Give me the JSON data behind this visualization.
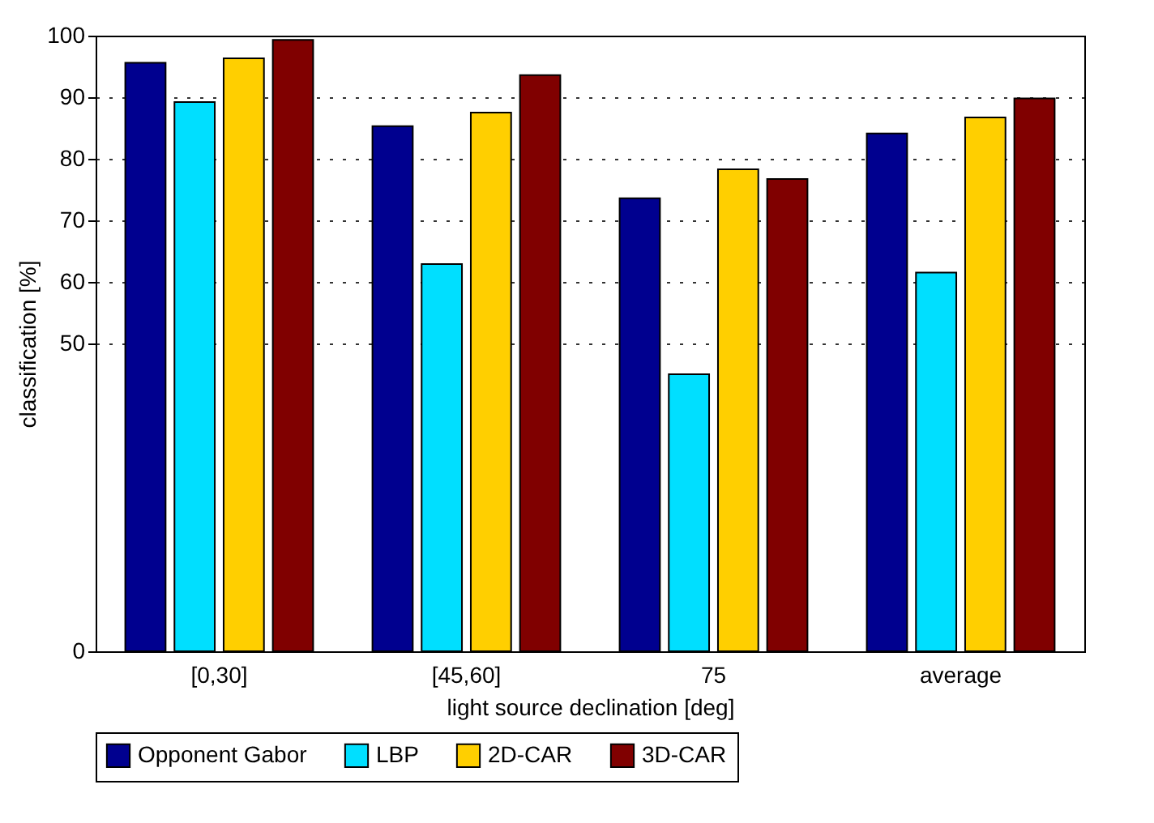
{
  "chart_data": {
    "type": "bar",
    "xlabel": "light source declination [deg]",
    "ylabel": "classification [%]",
    "categories": [
      "[0,30]",
      "[45,60]",
      "75",
      "average"
    ],
    "series": [
      {
        "name": "Opponent Gabor",
        "color": "#00008f",
        "values": [
          95.6,
          85.3,
          73.6,
          84.1
        ]
      },
      {
        "name": "LBP",
        "color": "#00dfff",
        "values": [
          89.2,
          62.9,
          45,
          61.5
        ]
      },
      {
        "name": "2D-CAR",
        "color": "#ffcf00",
        "values": [
          96.3,
          87.5,
          78.3,
          86.7
        ]
      },
      {
        "name": "3D-CAR",
        "color": "#800000",
        "values": [
          99.3,
          93.6,
          76.7,
          89.8
        ]
      }
    ],
    "ylim": [
      0,
      100
    ],
    "yticks": [
      0,
      50,
      60,
      70,
      80,
      90,
      100
    ],
    "grid": "y",
    "legend": "bottom"
  }
}
